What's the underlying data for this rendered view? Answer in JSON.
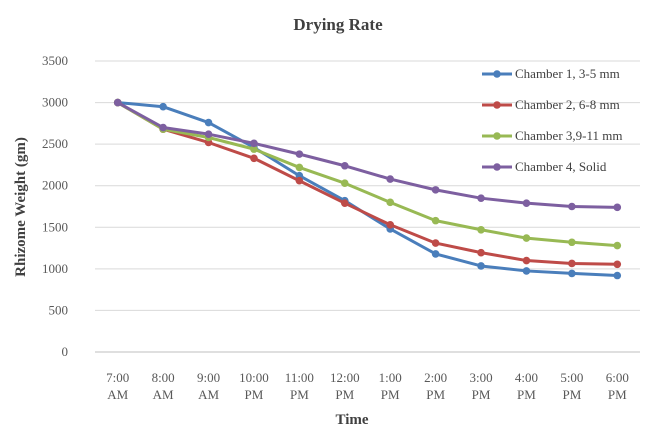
{
  "chart_data": {
    "type": "line",
    "title": "Drying Rate",
    "xlabel": "Time",
    "ylabel": "Rhizome Weight (gm)",
    "categories": [
      [
        "7:00",
        "AM"
      ],
      [
        "8:00",
        "AM"
      ],
      [
        "9:00",
        "AM"
      ],
      [
        "10:00",
        "PM"
      ],
      [
        "11:00",
        "PM"
      ],
      [
        "12:00",
        "PM"
      ],
      [
        "1:00",
        "PM"
      ],
      [
        "2:00",
        "PM"
      ],
      [
        "3:00",
        "PM"
      ],
      [
        "4:00",
        "PM"
      ],
      [
        "5:00",
        "PM"
      ],
      [
        "6:00",
        "PM"
      ]
    ],
    "ylim": [
      0,
      3500
    ],
    "yticks": [
      0,
      500,
      1000,
      1500,
      2000,
      2500,
      3000,
      3500
    ],
    "grid": true,
    "legend_position": "top-right",
    "series": [
      {
        "name": "Chamber 1, 3-5 mm",
        "color": "#4a7ebb",
        "values": [
          3000,
          2950,
          2760,
          2460,
          2120,
          1820,
          1480,
          1180,
          1035,
          975,
          945,
          920
        ]
      },
      {
        "name": "Chamber 2, 6-8 mm",
        "color": "#be4b48",
        "values": [
          3000,
          2680,
          2520,
          2330,
          2060,
          1790,
          1530,
          1310,
          1195,
          1100,
          1065,
          1055
        ]
      },
      {
        "name": "Chamber 3,9-11 mm",
        "color": "#98b954",
        "values": [
          3000,
          2680,
          2580,
          2440,
          2220,
          2030,
          1800,
          1580,
          1470,
          1370,
          1320,
          1280
        ]
      },
      {
        "name": "Chamber 4, Solid",
        "color": "#7d5fa0",
        "values": [
          3000,
          2700,
          2620,
          2510,
          2380,
          2240,
          2080,
          1950,
          1850,
          1790,
          1750,
          1740
        ]
      }
    ]
  }
}
